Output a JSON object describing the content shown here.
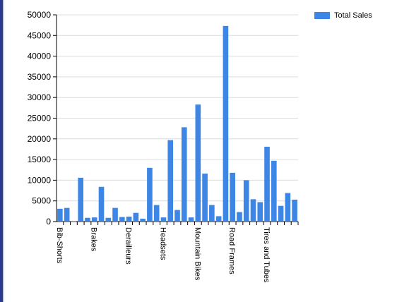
{
  "chart_data": {
    "type": "bar",
    "ylim": [
      0,
      50000
    ],
    "yticks": [
      0,
      5000,
      10000,
      15000,
      20000,
      25000,
      30000,
      35000,
      40000,
      45000,
      50000
    ],
    "grid": true,
    "legend_position": "top-right",
    "series": [
      {
        "name": "Total Sales",
        "color": "#3d86e6",
        "values": [
          3100,
          3300,
          100,
          10600,
          900,
          1000,
          8400,
          900,
          3300,
          1100,
          1200,
          2100,
          700,
          13000,
          4000,
          1000,
          19700,
          2800,
          22800,
          1000,
          28300,
          11600,
          4000,
          1300,
          47300,
          11800,
          2300,
          10000,
          5400,
          4700,
          18100,
          14700,
          3800,
          6900,
          5300
        ]
      }
    ],
    "x_labels": [
      {
        "index": 0,
        "text": "Bib-Shorts"
      },
      {
        "index": 5,
        "text": "Brakes"
      },
      {
        "index": 10,
        "text": "Derailleurs"
      },
      {
        "index": 15,
        "text": "Headsets"
      },
      {
        "index": 20,
        "text": "Mountain Bikes"
      },
      {
        "index": 25,
        "text": "Road Frames"
      },
      {
        "index": 30,
        "text": "Tires and Tubes"
      }
    ]
  }
}
